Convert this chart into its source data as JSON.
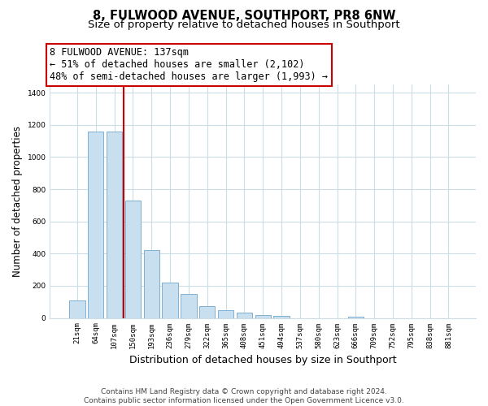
{
  "title": "8, FULWOOD AVENUE, SOUTHPORT, PR8 6NW",
  "subtitle": "Size of property relative to detached houses in Southport",
  "xlabel": "Distribution of detached houses by size in Southport",
  "ylabel": "Number of detached properties",
  "bar_labels": [
    "21sqm",
    "64sqm",
    "107sqm",
    "150sqm",
    "193sqm",
    "236sqm",
    "279sqm",
    "322sqm",
    "365sqm",
    "408sqm",
    "451sqm",
    "494sqm",
    "537sqm",
    "580sqm",
    "623sqm",
    "666sqm",
    "709sqm",
    "752sqm",
    "795sqm",
    "838sqm",
    "881sqm"
  ],
  "bar_values": [
    107,
    1160,
    1160,
    730,
    420,
    220,
    148,
    75,
    50,
    33,
    18,
    14,
    0,
    0,
    0,
    8,
    0,
    0,
    0,
    0,
    0
  ],
  "bar_color": "#c8dff0",
  "bar_edge_color": "#7fb0d0",
  "vline_color": "#cc0000",
  "annotation_line1": "8 FULWOOD AVENUE: 137sqm",
  "annotation_line2": "← 51% of detached houses are smaller (2,102)",
  "annotation_line3": "48% of semi-detached houses are larger (1,993) →",
  "annotation_box_color": "#ffffff",
  "annotation_box_edge": "#cc0000",
  "ylim": [
    0,
    1450
  ],
  "yticks": [
    0,
    200,
    400,
    600,
    800,
    1000,
    1200,
    1400
  ],
  "footer1": "Contains HM Land Registry data © Crown copyright and database right 2024.",
  "footer2": "Contains public sector information licensed under the Open Government Licence v3.0.",
  "background_color": "#ffffff",
  "grid_color": "#ccdde8",
  "title_fontsize": 10.5,
  "subtitle_fontsize": 9.5,
  "annotation_fontsize": 8.5,
  "ylabel_fontsize": 8.5,
  "xlabel_fontsize": 9,
  "tick_fontsize": 6.5,
  "footer_fontsize": 6.5
}
